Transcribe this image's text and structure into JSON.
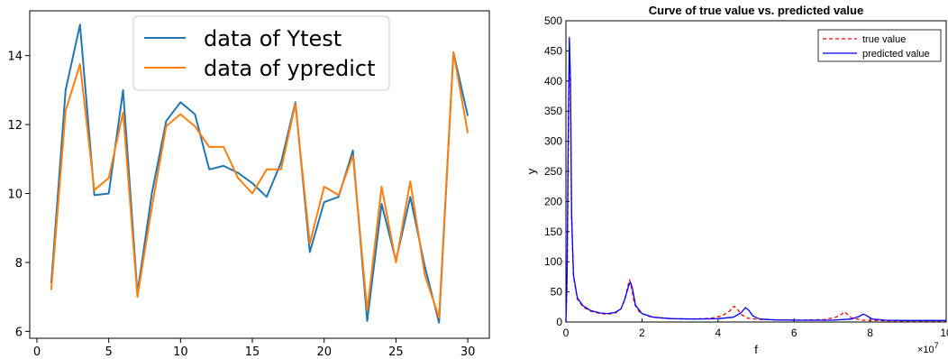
{
  "chart_data": [
    {
      "type": "line",
      "title": "",
      "xlabel": "",
      "ylabel": "",
      "xlim": [
        -0.5,
        31.5
      ],
      "ylim": [
        5.8,
        15.3
      ],
      "xticks": [
        0,
        5,
        10,
        15,
        20,
        25,
        30
      ],
      "yticks": [
        6,
        8,
        10,
        12,
        14
      ],
      "legend_position": "top",
      "x": [
        1,
        2,
        3,
        4,
        5,
        6,
        7,
        8,
        9,
        10,
        11,
        12,
        13,
        14,
        15,
        16,
        17,
        18,
        19,
        20,
        21,
        22,
        23,
        24,
        25,
        26,
        27,
        28,
        29,
        30
      ],
      "series": [
        {
          "name": "data of Ytest",
          "color": "#1f77b4",
          "values": [
            7.4,
            13.0,
            14.9,
            9.95,
            10.0,
            13.0,
            7.1,
            10.0,
            12.1,
            12.65,
            12.3,
            10.7,
            10.8,
            10.6,
            10.3,
            9.9,
            10.9,
            12.65,
            8.3,
            9.75,
            9.9,
            11.25,
            6.3,
            9.7,
            8.05,
            9.9,
            7.9,
            6.25,
            14.1,
            12.25
          ]
        },
        {
          "name": "data of ypredict",
          "color": "#ff7f0e",
          "values": [
            7.2,
            12.4,
            13.75,
            10.1,
            10.45,
            12.35,
            7.0,
            9.6,
            11.95,
            12.3,
            11.95,
            11.35,
            11.35,
            10.45,
            10.0,
            10.7,
            10.7,
            12.6,
            8.55,
            10.2,
            9.95,
            11.1,
            6.6,
            10.2,
            8.0,
            10.35,
            7.65,
            6.4,
            14.1,
            11.75
          ]
        }
      ]
    },
    {
      "type": "line",
      "title": "Curve of true value vs. predicted value",
      "xlabel": "f",
      "ylabel": "y",
      "x_exponent_label": "×10",
      "x_exponent_power": "7",
      "xlim": [
        0,
        10
      ],
      "ylim": [
        0,
        500
      ],
      "xticks": [
        "0",
        "2",
        "4",
        "6",
        "8",
        "10"
      ],
      "yticks": [
        0,
        50,
        100,
        150,
        200,
        250,
        300,
        350,
        400,
        450,
        500
      ],
      "legend_position": "top-right",
      "series": [
        {
          "name": "true value",
          "color": "#ff0000",
          "style": "dashed",
          "points": [
            [
              0,
              0
            ],
            [
              0.03,
              60
            ],
            [
              0.06,
              250
            ],
            [
              0.09,
              460
            ],
            [
              0.12,
              380
            ],
            [
              0.15,
              170
            ],
            [
              0.2,
              75
            ],
            [
              0.3,
              38
            ],
            [
              0.45,
              25
            ],
            [
              0.65,
              18
            ],
            [
              0.9,
              14
            ],
            [
              1.1,
              13
            ],
            [
              1.3,
              15
            ],
            [
              1.45,
              22
            ],
            [
              1.55,
              38
            ],
            [
              1.63,
              60
            ],
            [
              1.67,
              70
            ],
            [
              1.72,
              58
            ],
            [
              1.8,
              30
            ],
            [
              1.95,
              15
            ],
            [
              2.2,
              9
            ],
            [
              2.6,
              6
            ],
            [
              3.2,
              5
            ],
            [
              3.8,
              6
            ],
            [
              4.1,
              10
            ],
            [
              4.3,
              18
            ],
            [
              4.42,
              26
            ],
            [
              4.5,
              22
            ],
            [
              4.62,
              12
            ],
            [
              4.8,
              6
            ],
            [
              5.2,
              4
            ],
            [
              6.0,
              3
            ],
            [
              6.8,
              4
            ],
            [
              7.1,
              8
            ],
            [
              7.25,
              13
            ],
            [
              7.32,
              17
            ],
            [
              7.38,
              14
            ],
            [
              7.5,
              7
            ],
            [
              7.8,
              3
            ],
            [
              8.5,
              2
            ],
            [
              9.2,
              2
            ],
            [
              10,
              2
            ]
          ]
        },
        {
          "name": "predicted value",
          "color": "#0000ff",
          "style": "solid",
          "points": [
            [
              0,
              0
            ],
            [
              0.03,
              80
            ],
            [
              0.06,
              300
            ],
            [
              0.09,
              472
            ],
            [
              0.12,
              400
            ],
            [
              0.15,
              180
            ],
            [
              0.2,
              78
            ],
            [
              0.3,
              40
            ],
            [
              0.45,
              27
            ],
            [
              0.65,
              19
            ],
            [
              0.9,
              15
            ],
            [
              1.1,
              14
            ],
            [
              1.3,
              16
            ],
            [
              1.45,
              22
            ],
            [
              1.55,
              38
            ],
            [
              1.65,
              60
            ],
            [
              1.7,
              66
            ],
            [
              1.75,
              55
            ],
            [
              1.83,
              28
            ],
            [
              2.0,
              14
            ],
            [
              2.3,
              8
            ],
            [
              2.8,
              5.5
            ],
            [
              3.4,
              5
            ],
            [
              4.0,
              5.5
            ],
            [
              4.4,
              8
            ],
            [
              4.6,
              15
            ],
            [
              4.72,
              24
            ],
            [
              4.8,
              20
            ],
            [
              4.92,
              10
            ],
            [
              5.1,
              5
            ],
            [
              5.5,
              3.5
            ],
            [
              6.2,
              3
            ],
            [
              7.0,
              3
            ],
            [
              7.5,
              5
            ],
            [
              7.7,
              9
            ],
            [
              7.82,
              13
            ],
            [
              7.9,
              11
            ],
            [
              8.05,
              5
            ],
            [
              8.4,
              3
            ],
            [
              9.0,
              2.5
            ],
            [
              10,
              2.5
            ]
          ]
        }
      ]
    }
  ]
}
